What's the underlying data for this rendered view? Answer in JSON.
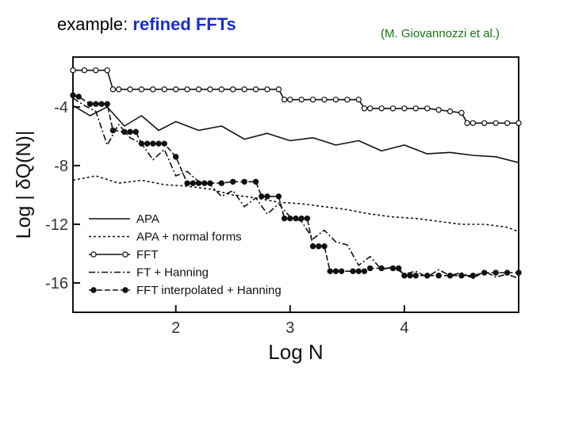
{
  "slide": {
    "title_prefix": "example:",
    "title_highlight": "refined FFTs",
    "credit": "(M. Giovannozzi et al.)"
  },
  "colors": {
    "title_highlight": "#1a2fc8",
    "credit": "#137a13",
    "ink": "#111111"
  },
  "chart_data": {
    "type": "line",
    "title": "",
    "xlabel": "Log N",
    "ylabel": "Log | δQ(N)|",
    "xlim": [
      1.1,
      5.0
    ],
    "ylim": [
      -18.0,
      -0.6
    ],
    "xticks": [
      2,
      3,
      4
    ],
    "xtick_labels": [
      "2",
      "3",
      "4"
    ],
    "yticks": [
      -4,
      -8,
      -12,
      -16
    ],
    "ytick_labels": [
      "-4",
      "-8",
      "-12",
      "-16"
    ],
    "grid": false,
    "legend_position": "bottom-left",
    "series": [
      {
        "name": "APA",
        "style": "solid",
        "x": [
          1.1,
          1.25,
          1.4,
          1.55,
          1.7,
          1.85,
          2.0,
          2.2,
          2.4,
          2.6,
          2.8,
          3.0,
          3.2,
          3.4,
          3.6,
          3.8,
          4.0,
          4.2,
          4.4,
          4.6,
          4.8,
          5.0
        ],
        "y": [
          -3.9,
          -4.6,
          -4.0,
          -5.3,
          -4.6,
          -5.6,
          -5.0,
          -5.6,
          -5.3,
          -6.2,
          -5.8,
          -6.3,
          -6.1,
          -6.6,
          -6.3,
          -7.0,
          -6.6,
          -7.2,
          -7.1,
          -7.3,
          -7.4,
          -7.8
        ]
      },
      {
        "name": "APA + normal forms",
        "style": "dashed",
        "x": [
          1.1,
          1.3,
          1.5,
          1.7,
          1.9,
          2.1,
          2.3,
          2.5,
          2.7,
          2.9,
          3.1,
          3.3,
          3.5,
          3.7,
          3.9,
          4.1,
          4.3,
          4.5,
          4.7,
          4.9,
          5.0
        ],
        "y": [
          -9.0,
          -8.7,
          -9.2,
          -9.0,
          -9.3,
          -9.4,
          -9.6,
          -10.0,
          -10.2,
          -10.5,
          -10.6,
          -10.8,
          -11.0,
          -11.3,
          -11.5,
          -11.6,
          -11.8,
          -12.0,
          -12.0,
          -12.2,
          -12.5
        ]
      },
      {
        "name": "FFT",
        "style": "solid-open-markers",
        "x": [
          1.1,
          1.2,
          1.3,
          1.4,
          1.45,
          1.5,
          1.6,
          1.7,
          1.8,
          1.9,
          2.0,
          2.1,
          2.2,
          2.3,
          2.4,
          2.5,
          2.6,
          2.7,
          2.8,
          2.9,
          2.95,
          3.0,
          3.1,
          3.2,
          3.3,
          3.4,
          3.5,
          3.6,
          3.65,
          3.7,
          3.8,
          3.9,
          4.0,
          4.1,
          4.2,
          4.3,
          4.4,
          4.5,
          4.55,
          4.6,
          4.7,
          4.8,
          4.9,
          5.0
        ],
        "y": [
          -1.5,
          -1.5,
          -1.5,
          -1.5,
          -2.8,
          -2.8,
          -2.8,
          -2.8,
          -2.8,
          -2.8,
          -2.8,
          -2.8,
          -2.8,
          -2.8,
          -2.8,
          -2.8,
          -2.8,
          -2.8,
          -2.8,
          -2.8,
          -3.5,
          -3.5,
          -3.5,
          -3.5,
          -3.5,
          -3.5,
          -3.5,
          -3.5,
          -4.1,
          -4.1,
          -4.1,
          -4.1,
          -4.1,
          -4.1,
          -4.1,
          -4.2,
          -4.3,
          -4.4,
          -5.1,
          -5.1,
          -5.1,
          -5.1,
          -5.1,
          -5.1
        ]
      },
      {
        "name": "FT + Hanning",
        "style": "dashdot",
        "x": [
          1.1,
          1.2,
          1.3,
          1.4,
          1.5,
          1.6,
          1.7,
          1.8,
          1.9,
          2.0,
          2.1,
          2.2,
          2.3,
          2.4,
          2.5,
          2.6,
          2.7,
          2.8,
          2.9,
          3.0,
          3.1,
          3.2,
          3.3,
          3.4,
          3.5,
          3.6,
          3.7,
          3.8,
          3.9,
          4.0,
          4.1,
          4.2,
          4.3,
          4.4,
          4.5,
          4.6,
          4.7,
          4.8,
          4.9,
          5.0
        ],
        "y": [
          -3.4,
          -3.9,
          -4.3,
          -6.6,
          -5.2,
          -6.1,
          -6.5,
          -7.6,
          -6.9,
          -8.7,
          -8.4,
          -9.1,
          -9.3,
          -10.1,
          -9.7,
          -10.8,
          -10.2,
          -11.3,
          -10.6,
          -11.5,
          -11.8,
          -13.0,
          -12.4,
          -13.2,
          -13.4,
          -14.8,
          -14.2,
          -15.1,
          -14.9,
          -15.4,
          -15.2,
          -15.6,
          -15.1,
          -15.5,
          -15.3,
          -15.7,
          -15.2,
          -15.6,
          -15.4,
          -15.7
        ]
      },
      {
        "name": "FFT interpolated + Hanning",
        "style": "dashed-filled-markers",
        "x": [
          1.1,
          1.15,
          1.25,
          1.3,
          1.35,
          1.4,
          1.45,
          1.55,
          1.6,
          1.65,
          1.7,
          1.75,
          1.8,
          1.85,
          1.9,
          2.0,
          2.1,
          2.15,
          2.2,
          2.25,
          2.3,
          2.4,
          2.5,
          2.6,
          2.7,
          2.75,
          2.8,
          2.9,
          2.95,
          3.0,
          3.05,
          3.1,
          3.15,
          3.2,
          3.25,
          3.3,
          3.35,
          3.4,
          3.45,
          3.55,
          3.6,
          3.65,
          3.7,
          3.8,
          3.9,
          3.95,
          4.0,
          4.05,
          4.1,
          4.2,
          4.3,
          4.4,
          4.5,
          4.6,
          4.7,
          4.8,
          4.9,
          5.0
        ],
        "y": [
          -3.2,
          -3.3,
          -3.8,
          -3.8,
          -3.8,
          -3.8,
          -5.6,
          -5.7,
          -5.7,
          -5.7,
          -6.5,
          -6.5,
          -6.5,
          -6.5,
          -6.5,
          -7.4,
          -9.2,
          -9.2,
          -9.2,
          -9.2,
          -9.2,
          -9.2,
          -9.1,
          -9.1,
          -9.1,
          -10.1,
          -10.1,
          -10.1,
          -11.6,
          -11.6,
          -11.6,
          -11.6,
          -11.6,
          -13.5,
          -13.5,
          -13.5,
          -15.2,
          -15.2,
          -15.2,
          -15.2,
          -15.2,
          -15.2,
          -15.0,
          -15.0,
          -15.0,
          -15.0,
          -15.5,
          -15.5,
          -15.5,
          -15.5,
          -15.5,
          -15.5,
          -15.5,
          -15.5,
          -15.3,
          -15.3,
          -15.3,
          -15.3
        ]
      }
    ]
  }
}
